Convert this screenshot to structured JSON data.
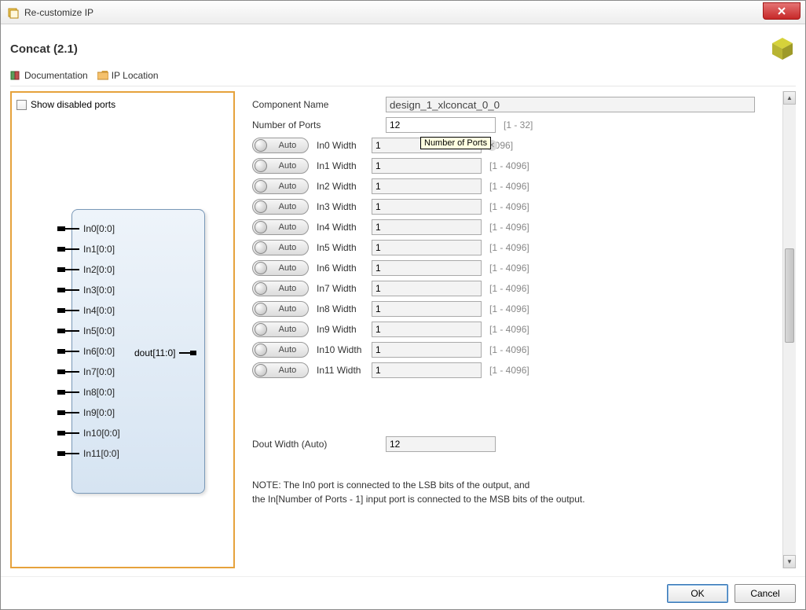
{
  "window": {
    "title": "Re-customize IP",
    "close_label": "✕"
  },
  "header": {
    "ip_title": "Concat (2.1)"
  },
  "toolbar": {
    "documentation": "Documentation",
    "ip_location": "IP Location"
  },
  "left": {
    "show_disabled": "Show disabled ports",
    "output_port": "dout[11:0]",
    "input_ports": [
      "In0[0:0]",
      "In1[0:0]",
      "In2[0:0]",
      "In3[0:0]",
      "In4[0:0]",
      "In5[0:0]",
      "In6[0:0]",
      "In7[0:0]",
      "In8[0:0]",
      "In9[0:0]",
      "In10[0:0]",
      "In11[0:0]"
    ]
  },
  "form": {
    "component_name_label": "Component Name",
    "component_name_value": "design_1_xlconcat_0_0",
    "num_ports_label": "Number of Ports",
    "num_ports_value": "12",
    "num_ports_hint": "[1 - 32]",
    "tooltip": "Number of Ports",
    "auto_label": "Auto",
    "width_hint": "[1 - 4096]",
    "width_hint_short": "4096]",
    "widths": [
      {
        "label": "In0 Width",
        "value": "1"
      },
      {
        "label": "In1 Width",
        "value": "1"
      },
      {
        "label": "In2 Width",
        "value": "1"
      },
      {
        "label": "In3 Width",
        "value": "1"
      },
      {
        "label": "In4 Width",
        "value": "1"
      },
      {
        "label": "In5 Width",
        "value": "1"
      },
      {
        "label": "In6 Width",
        "value": "1"
      },
      {
        "label": "In7 Width",
        "value": "1"
      },
      {
        "label": "In8 Width",
        "value": "1"
      },
      {
        "label": "In9 Width",
        "value": "1"
      },
      {
        "label": "In10 Width",
        "value": "1"
      },
      {
        "label": "In11 Width",
        "value": "1"
      }
    ],
    "dout_label": "Dout Width (Auto)",
    "dout_value": "12",
    "note_line1": "NOTE: The In0 port is connected to the LSB bits of the output, and",
    "note_line2": "the In[Number of Ports - 1] input port is connected to the MSB bits of the output."
  },
  "footer": {
    "ok": "OK",
    "cancel": "Cancel"
  },
  "colors": {
    "accent_border": "#e6a23c",
    "block_border": "#7a99b8"
  }
}
